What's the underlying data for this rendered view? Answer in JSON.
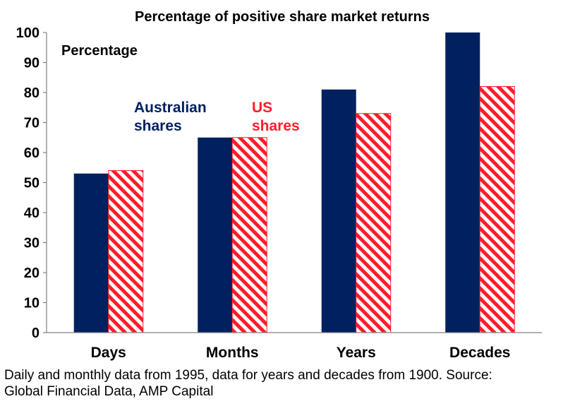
{
  "chart_data": {
    "type": "bar",
    "title": "Percentage of positive share market returns",
    "ylabel": "Percentage",
    "categories": [
      "Days",
      "Months",
      "Years",
      "Decades"
    ],
    "series": [
      {
        "name_lines": [
          "Australian",
          "shares"
        ],
        "values": [
          53,
          65,
          81,
          100
        ],
        "color": "#002060",
        "fill": "solid"
      },
      {
        "name_lines": [
          "US",
          "shares"
        ],
        "values": [
          54,
          65,
          73,
          82
        ],
        "color": "#ff1c2a",
        "fill": "diagonal-stripes"
      }
    ],
    "ylim": [
      0,
      100
    ],
    "yticks": [
      "0",
      "10",
      "20",
      "30",
      "40",
      "50",
      "60",
      "70",
      "80",
      "90",
      "100"
    ],
    "grid": false
  },
  "footnote": {
    "line1": "Daily and monthly data from 1995, data for years and decades from 1900. Source:",
    "line2": "Global Financial Data, AMP Capital"
  }
}
